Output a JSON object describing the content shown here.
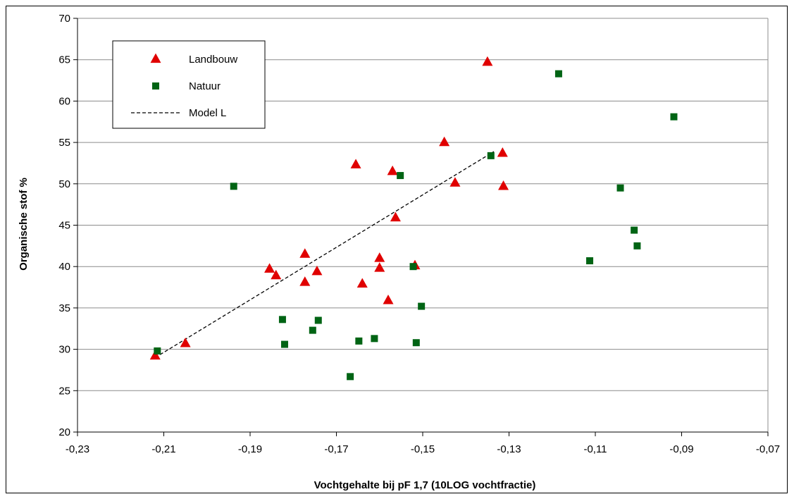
{
  "chart_data": {
    "type": "scatter",
    "xlabel": "Vochtgehalte bij pF 1,7 (10LOG vochtfractie)",
    "ylabel": "Organische stof %",
    "xlim": [
      -0.23,
      -0.07
    ],
    "ylim": [
      20,
      70
    ],
    "x_ticks": [
      -0.23,
      -0.21,
      -0.19,
      -0.17,
      -0.15,
      -0.13,
      -0.11,
      -0.09,
      -0.07
    ],
    "x_tick_labels": [
      "-0,23",
      "-0,21",
      "-0,19",
      "-0,17",
      "-0,15",
      "-0,13",
      "-0,11",
      "-0,09",
      "-0,07"
    ],
    "y_ticks": [
      20,
      25,
      30,
      35,
      40,
      45,
      50,
      55,
      60,
      65,
      70
    ],
    "y_tick_labels": [
      "20",
      "25",
      "30",
      "35",
      "40",
      "45",
      "50",
      "55",
      "60",
      "65",
      "70"
    ],
    "grid": "horizontal",
    "legend_position": "top-left",
    "series": [
      {
        "name": "Landbouw",
        "marker": "triangle",
        "color": "#e00000",
        "points": [
          [
            -0.212,
            29.2
          ],
          [
            -0.205,
            30.7
          ],
          [
            -0.1855,
            39.7
          ],
          [
            -0.184,
            38.9
          ],
          [
            -0.1773,
            41.5
          ],
          [
            -0.1773,
            38.1
          ],
          [
            -0.1745,
            39.4
          ],
          [
            -0.1655,
            52.3
          ],
          [
            -0.164,
            37.9
          ],
          [
            -0.16,
            41.0
          ],
          [
            -0.16,
            39.8
          ],
          [
            -0.158,
            35.9
          ],
          [
            -0.157,
            51.5
          ],
          [
            -0.1563,
            45.9
          ],
          [
            -0.1518,
            40.1
          ],
          [
            -0.145,
            55.0
          ],
          [
            -0.1425,
            50.1
          ],
          [
            -0.135,
            64.7
          ],
          [
            -0.1315,
            53.7
          ],
          [
            -0.1313,
            49.7
          ]
        ]
      },
      {
        "name": "Natuur",
        "marker": "square",
        "color": "#006414",
        "points": [
          [
            -0.2115,
            29.8
          ],
          [
            -0.1938,
            49.7
          ],
          [
            -0.1825,
            33.6
          ],
          [
            -0.182,
            30.6
          ],
          [
            -0.1755,
            32.3
          ],
          [
            -0.1742,
            33.5
          ],
          [
            -0.1668,
            26.7
          ],
          [
            -0.1648,
            31.0
          ],
          [
            -0.1612,
            31.3
          ],
          [
            -0.1552,
            51.0
          ],
          [
            -0.1522,
            40.0
          ],
          [
            -0.1515,
            30.8
          ],
          [
            -0.1503,
            35.2
          ],
          [
            -0.1342,
            53.4
          ],
          [
            -0.1185,
            63.3
          ],
          [
            -0.1113,
            40.7
          ],
          [
            -0.1042,
            49.5
          ],
          [
            -0.101,
            44.4
          ],
          [
            -0.1003,
            42.5
          ],
          [
            -0.0918,
            58.1
          ]
        ]
      },
      {
        "name": "Model L",
        "marker": "dashed-line",
        "color": "#000000",
        "points": [
          [
            -0.212,
            29.0
          ],
          [
            -0.1335,
            53.9
          ]
        ]
      }
    ]
  }
}
